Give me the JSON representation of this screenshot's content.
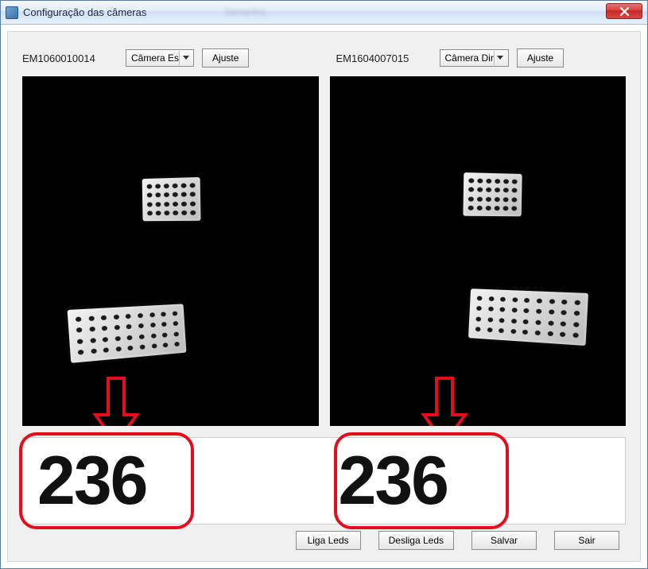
{
  "window": {
    "title": "Configuração das câmeras",
    "blurred_label": "Tamanho",
    "close_icon": "close-icon"
  },
  "left": {
    "serial": "EM1060010014",
    "combo_label": "Câmera Es",
    "ajuste_label": "Ajuste",
    "value": "236",
    "board_small": {
      "cols": 6,
      "rows": 4
    },
    "board_big": {
      "cols": 9,
      "rows": 4
    }
  },
  "right": {
    "serial": "EM1604007015",
    "combo_label": "Câmera Dir",
    "ajuste_label": "Ajuste",
    "value": "236",
    "board_small": {
      "cols": 6,
      "rows": 4
    },
    "board_big": {
      "cols": 9,
      "rows": 4
    }
  },
  "buttons": {
    "liga": "Liga Leds",
    "desliga": "Desliga Leds",
    "salvar": "Salvar",
    "sair": "Sair"
  },
  "annotation": {
    "arrow_stroke": "#e30d1b",
    "arrow_stroke_width": 4,
    "highlight_stroke": "#e30d1b",
    "highlight_radius": 22
  },
  "colors": {
    "titlebar_grad_top": "#f6f9fd",
    "titlebar_grad_bot": "#e8f1fb",
    "client_bg": "#f0f0f0",
    "preview_bg": "#000000",
    "button_border": "#8c8c8c",
    "close_red1": "#d9433b",
    "close_red2": "#c62828"
  }
}
